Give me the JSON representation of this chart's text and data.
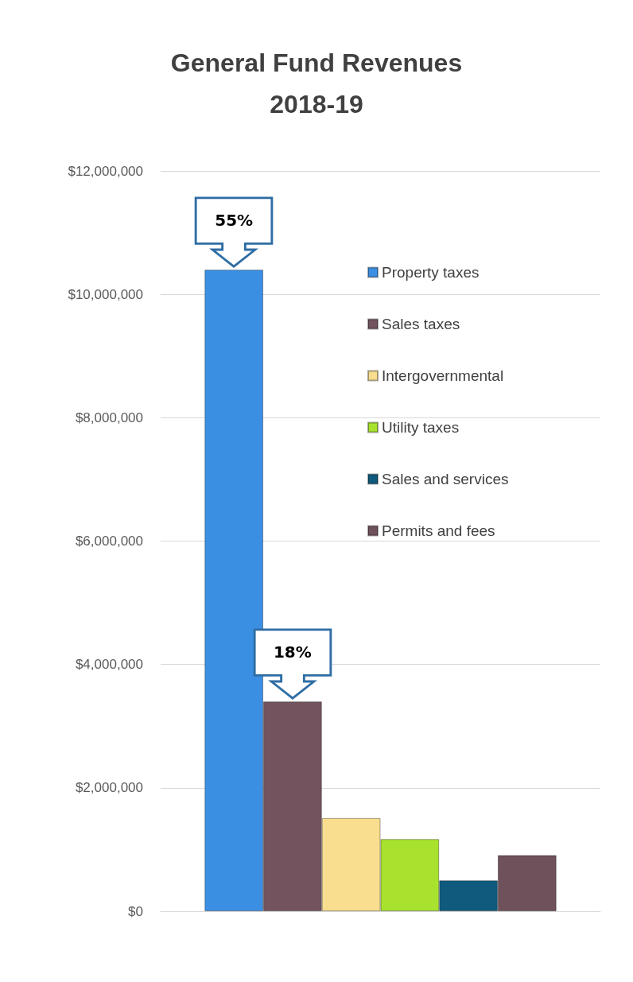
{
  "chart_data": {
    "type": "bar",
    "title": "General Fund Revenues\n2018-19",
    "categories": [
      null
    ],
    "series": [
      {
        "name": "Property taxes",
        "color": "#3b8fe3",
        "values": [
          10400000
        ]
      },
      {
        "name": "Sales taxes",
        "color": "#72535e",
        "values": [
          3400000
        ]
      },
      {
        "name": "Intergovernmental",
        "color": "#f8de8e",
        "values": [
          1510000
        ]
      },
      {
        "name": "Utility taxes",
        "color": "#a8e22e",
        "values": [
          1170000
        ]
      },
      {
        "name": "Sales and services",
        "color": "#0f5a7d",
        "values": [
          500000
        ]
      },
      {
        "name": "Permits and fees",
        "color": "#6e515a",
        "values": [
          910000
        ]
      }
    ],
    "annotations": [
      {
        "text": "55%",
        "y": 10400000
      },
      {
        "text": "18%",
        "y": 3400000
      }
    ],
    "ylim": [
      0,
      12000000
    ],
    "yticks": [
      {
        "value": 0,
        "label": "$0"
      },
      {
        "value": 2000000,
        "label": "$2,000,000"
      },
      {
        "value": 4000000,
        "label": "$4,000,000"
      },
      {
        "value": 6000000,
        "label": "$6,000,000"
      },
      {
        "value": 8000000,
        "label": "$8,000,000"
      },
      {
        "value": 10000000,
        "label": "$10,000,000"
      },
      {
        "value": 12000000,
        "label": "$12,000,000"
      }
    ],
    "grid": "y",
    "legend": "top right"
  }
}
